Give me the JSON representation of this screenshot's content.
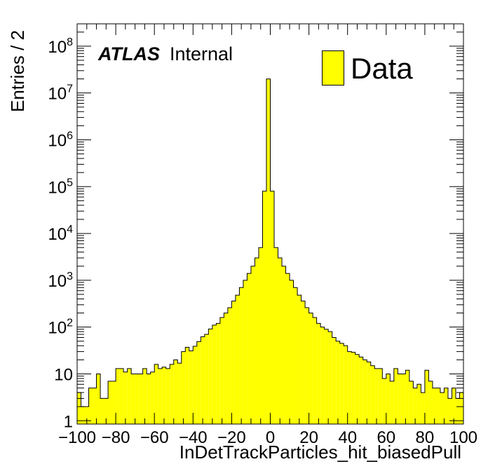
{
  "labels": {
    "y_title": "Entries / 2",
    "x_title": "InDetTrackParticles_hit_biasedPull",
    "atlas": "ATLAS",
    "atlas_status": "Internal",
    "legend": "Data"
  },
  "colors": {
    "fill": "#ffff00",
    "line": "#000000"
  },
  "chart_data": {
    "type": "bar",
    "title": "",
    "xlabel": "InDetTrackParticles_hit_biasedPull",
    "ylabel": "Entries / 2",
    "xlim": [
      -100,
      100
    ],
    "ylim": [
      0.85,
      300000000
    ],
    "y_scale": "log",
    "bin_width": 2,
    "x_ticks": [
      -100,
      -80,
      -60,
      -40,
      -20,
      0,
      20,
      40,
      60,
      80,
      100
    ],
    "y_ticks": [
      {
        "value": 1,
        "label": "1"
      },
      {
        "value": 10,
        "label": "10"
      },
      {
        "value": 100,
        "label": "10^2"
      },
      {
        "value": 1000,
        "label": "10^3"
      },
      {
        "value": 10000,
        "label": "10^4"
      },
      {
        "value": 100000,
        "label": "10^5"
      },
      {
        "value": 1000000,
        "label": "10^6"
      },
      {
        "value": 10000000,
        "label": "10^7"
      },
      {
        "value": 100000000,
        "label": "10^8"
      }
    ],
    "legend_position": "top-right",
    "series": [
      {
        "name": "Data",
        "bin_low_edges": [
          -100,
          -98,
          -96,
          -94,
          -92,
          -90,
          -88,
          -86,
          -84,
          -82,
          -80,
          -78,
          -76,
          -74,
          -72,
          -70,
          -68,
          -66,
          -64,
          -62,
          -60,
          -58,
          -56,
          -54,
          -52,
          -50,
          -48,
          -46,
          -44,
          -42,
          -40,
          -38,
          -36,
          -34,
          -32,
          -30,
          -28,
          -26,
          -24,
          -22,
          -20,
          -18,
          -16,
          -14,
          -12,
          -10,
          -8,
          -6,
          -4,
          -2,
          0,
          2,
          4,
          6,
          8,
          10,
          12,
          14,
          16,
          18,
          20,
          22,
          24,
          26,
          28,
          30,
          32,
          34,
          36,
          38,
          40,
          42,
          44,
          46,
          48,
          50,
          52,
          54,
          56,
          58,
          60,
          62,
          64,
          66,
          68,
          70,
          72,
          74,
          76,
          78,
          80,
          82,
          84,
          86,
          88,
          90,
          92,
          94,
          96,
          98
        ],
        "values": [
          4,
          2,
          2,
          5,
          5,
          10,
          3,
          3,
          7,
          7,
          13,
          13,
          11,
          13,
          10,
          10,
          10,
          13,
          10,
          11,
          16,
          13,
          14,
          13,
          16,
          20,
          17,
          30,
          37,
          31,
          39,
          49,
          62,
          70,
          91,
          110,
          120,
          160,
          200,
          260,
          360,
          480,
          700,
          1000,
          1400,
          2000,
          3000,
          5000,
          80000,
          20000000,
          80000,
          5000,
          3000,
          2000,
          1400,
          1000,
          700,
          480,
          360,
          260,
          200,
          160,
          120,
          100,
          90,
          80,
          60,
          50,
          45,
          40,
          30,
          29,
          26,
          23,
          20,
          18,
          15,
          13,
          13,
          8,
          10,
          7,
          13,
          10,
          10,
          12,
          7,
          5,
          6,
          4,
          12,
          7,
          5,
          5,
          4,
          5,
          3,
          5,
          3,
          4
        ]
      }
    ]
  }
}
